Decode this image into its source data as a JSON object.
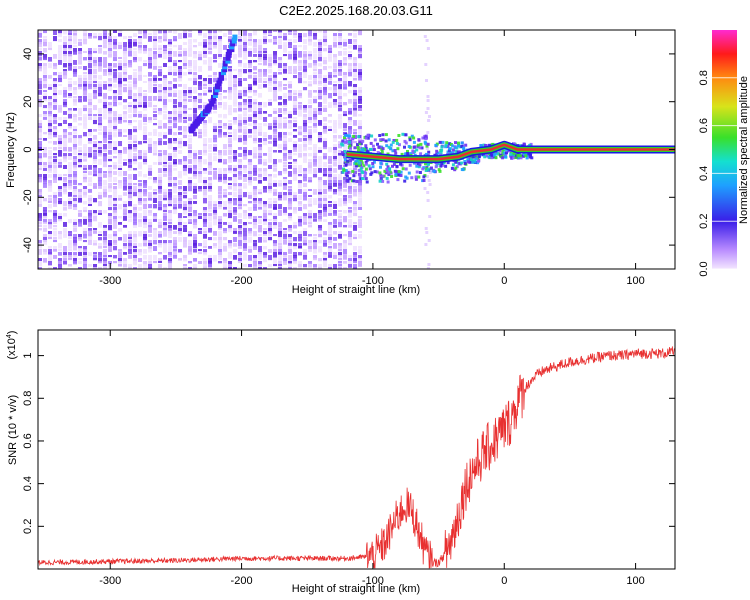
{
  "title": "C2E2.2025.168.20.03.G11",
  "colors": {
    "snr_line": "#e83030",
    "axis": "#000000",
    "spectrum_low": "#c8a8ff",
    "spectrum_mid": "#6a1fe0",
    "carrier": "#e53030"
  },
  "chart_data": [
    {
      "id": "spectrogram",
      "type": "heatmap",
      "xlabel": "Height of straight line (km)",
      "ylabel": "Frequency (Hz)",
      "xlim": [
        -355,
        130
      ],
      "ylim": [
        -50,
        50
      ],
      "xticks": [
        "-300",
        "-200",
        "-100",
        "0",
        "100"
      ],
      "xtick_values": [
        -300,
        -200,
        -100,
        0,
        100
      ],
      "yticks": [
        "40",
        "20",
        "0",
        "-20",
        "-40"
      ],
      "ytick_values": [
        40,
        20,
        0,
        -20,
        -40
      ],
      "noise_region_x": [
        -355,
        -108
      ],
      "carrier_track": [
        {
          "x": -120,
          "y": -2
        },
        {
          "x": -80,
          "y": -4
        },
        {
          "x": -50,
          "y": -4
        },
        {
          "x": -35,
          "y": -3
        },
        {
          "x": -25,
          "y": -1
        },
        {
          "x": -10,
          "y": 0
        },
        {
          "x": 0,
          "y": 2
        },
        {
          "x": 10,
          "y": 0
        },
        {
          "x": 130,
          "y": 0
        }
      ],
      "diagonal_streak": [
        {
          "x": -240,
          "y": 8
        },
        {
          "x": -225,
          "y": 18
        },
        {
          "x": -205,
          "y": 48
        }
      ],
      "colorbar": {
        "label": "Normalized spectral amplitude",
        "range": [
          0,
          1
        ],
        "ticks": [
          "0.0",
          "0.2",
          "0.4",
          "0.6",
          "0.8"
        ],
        "tick_values": [
          0,
          0.2,
          0.4,
          0.6,
          0.8
        ]
      },
      "grid": false
    },
    {
      "id": "snr",
      "type": "line",
      "xlabel": "Height of straight line (km)",
      "ylabel": "SNR (10 * v/v)",
      "yscale_label": "(x10",
      "yscale_exp": "4",
      "yscale_close": ")",
      "xlim": [
        -355,
        130
      ],
      "ylim": [
        0,
        1.12
      ],
      "xticks": [
        "-300",
        "-200",
        "-100",
        "0",
        "100"
      ],
      "xtick_values": [
        -300,
        -200,
        -100,
        0,
        100
      ],
      "yticks": [
        "0.2",
        "0.4",
        "0.6",
        "0.8",
        "1"
      ],
      "ytick_values": [
        0.2,
        0.4,
        0.6,
        0.8,
        1.0
      ],
      "series": [
        {
          "x": [
            -355,
            -300,
            -250,
            -200,
            -150,
            -120,
            -100,
            -95,
            -90,
            -85,
            -80,
            -75,
            -70,
            -65,
            -60,
            -55,
            -50,
            -45,
            -40,
            -35,
            -30,
            -25,
            -20,
            -15,
            -10,
            -5,
            0,
            5,
            10,
            15,
            20,
            25,
            30,
            40,
            50,
            60,
            70,
            80,
            90,
            100,
            110,
            120,
            130
          ],
          "y": [
            0.03,
            0.035,
            0.04,
            0.05,
            0.05,
            0.05,
            0.06,
            0.09,
            0.13,
            0.2,
            0.26,
            0.3,
            0.27,
            0.17,
            0.08,
            0.03,
            0.03,
            0.07,
            0.14,
            0.25,
            0.38,
            0.45,
            0.5,
            0.55,
            0.58,
            0.62,
            0.66,
            0.7,
            0.78,
            0.84,
            0.88,
            0.91,
            0.93,
            0.95,
            0.97,
            0.98,
            0.99,
            1.0,
            1.0,
            1.01,
            1.01,
            1.01,
            1.02
          ]
        }
      ],
      "grid": false
    }
  ]
}
